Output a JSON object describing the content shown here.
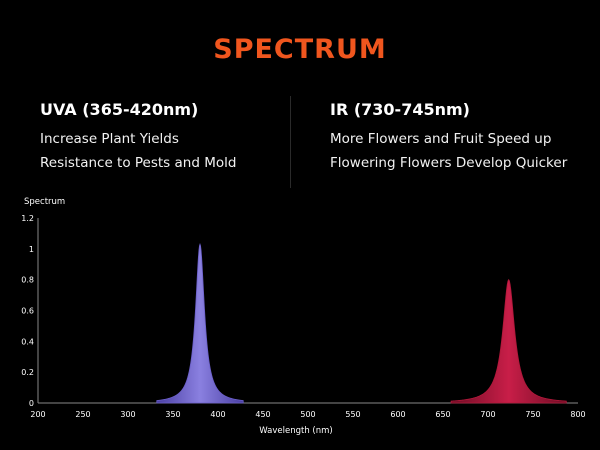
{
  "header": {
    "title": "SPECTRUM",
    "title_color": "#f0561e"
  },
  "left_column": {
    "heading": "UVA (365-420nm)",
    "lines": [
      "Increase Plant Yields",
      "Resistance to Pests and Mold"
    ]
  },
  "right_column": {
    "heading": "IR (730-745nm)",
    "lines": [
      "More Flowers and Fruit Speed up",
      "Flowering Flowers Develop Quicker"
    ]
  },
  "chart_data": {
    "type": "area",
    "title": "",
    "xlabel": "Wavelength (nm)",
    "ylabel": "Spectrum",
    "xlim": [
      200,
      800
    ],
    "ylim": [
      0,
      1.2
    ],
    "x_ticks": [
      "200",
      "250",
      "300",
      "350",
      "400",
      "450",
      "500",
      "550",
      "600",
      "650",
      "700",
      "750",
      "800"
    ],
    "y_ticks": [
      "0",
      "0.2",
      "0.4",
      "0.6",
      "0.8",
      "1",
      "1.2"
    ],
    "series": [
      {
        "name": "UVA",
        "peak_wavelength": 380,
        "peak_value": 1.03,
        "half_width": 6,
        "color": "#6b5fc9"
      },
      {
        "name": "IR",
        "peak_wavelength": 723,
        "peak_value": 0.8,
        "half_width": 8,
        "color": "#b0183a"
      }
    ]
  }
}
